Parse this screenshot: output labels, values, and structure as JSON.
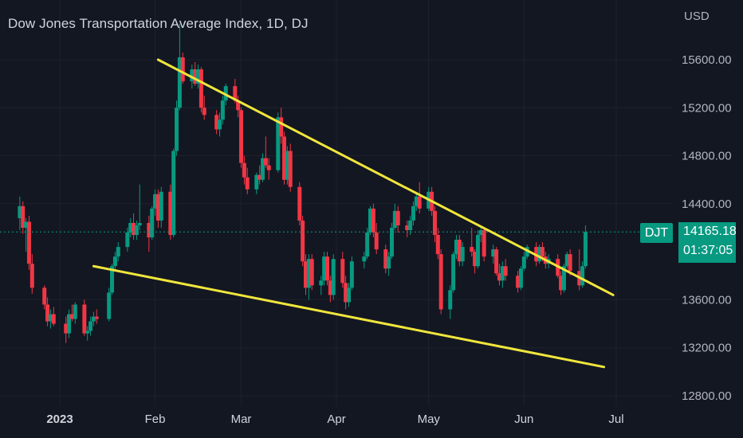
{
  "title": "Dow Jones Transportation Average Index, 1D, DJ",
  "currency": "USD",
  "symbol": "DJT",
  "last_price": "14165.18",
  "countdown": "01:37:05",
  "colors": {
    "background": "#131722",
    "up": "#089981",
    "down": "#f23645",
    "trendline": "#f0e63c",
    "price_line": "#089981"
  },
  "y_ticks": [
    "15600.00",
    "15200.00",
    "14800.00",
    "14400.00",
    "13600.00",
    "13200.00",
    "12800.00"
  ],
  "x_ticks": [
    "2023",
    "Feb",
    "Mar",
    "Apr",
    "May",
    "Jun",
    "Jul"
  ],
  "chart_data": {
    "type": "candlestick",
    "ylim": [
      12780,
      15950
    ],
    "y_ticks": [
      12800,
      13200,
      13600,
      14400,
      14800,
      15200,
      15600
    ],
    "x_tick_dates": [
      "2023-01-01",
      "2023-02-01",
      "2023-03-01",
      "2023-04-01",
      "2023-05-01",
      "2023-06-01",
      "2023-07-01"
    ],
    "last_price": 14165.18,
    "trendlines": [
      {
        "from": [
          "2023-02-02",
          15600
        ],
        "to": [
          "2023-06-30",
          13640
        ]
      },
      {
        "from": [
          "2023-01-12",
          13880
        ],
        "to": [
          "2023-06-27",
          13040
        ]
      }
    ],
    "candles": [
      [
        "2022-12-19",
        14280,
        14460,
        14180,
        14380
      ],
      [
        "2022-12-20",
        14380,
        14420,
        14150,
        14200
      ],
      [
        "2022-12-21",
        14200,
        14280,
        14000,
        14250
      ],
      [
        "2022-12-22",
        14250,
        14300,
        13850,
        13900
      ],
      [
        "2022-12-23",
        13900,
        13980,
        13650,
        13700
      ],
      [
        "2022-12-27",
        13700,
        13720,
        13520,
        13560
      ],
      [
        "2022-12-28",
        13560,
        13620,
        13380,
        13420
      ],
      [
        "2022-12-29",
        13420,
        13520,
        13360,
        13480
      ],
      [
        "2022-12-30",
        13480,
        13540,
        13380,
        13400
      ],
      [
        "2023-01-03",
        13400,
        13460,
        13240,
        13320
      ],
      [
        "2023-01-04",
        13320,
        13520,
        13280,
        13480
      ],
      [
        "2023-01-05",
        13480,
        13560,
        13420,
        13440
      ],
      [
        "2023-01-06",
        13440,
        13580,
        13400,
        13560
      ],
      [
        "2023-01-09",
        13560,
        13600,
        13300,
        13320
      ],
      [
        "2023-01-10",
        13320,
        13380,
        13260,
        13340
      ],
      [
        "2023-01-11",
        13340,
        13460,
        13300,
        13420
      ],
      [
        "2023-01-12",
        13420,
        13500,
        13380,
        13460
      ],
      [
        "2023-01-13",
        13460,
        13520,
        13400,
        13440
      ],
      [
        "2023-01-17",
        13440,
        13700,
        13420,
        13660
      ],
      [
        "2023-01-18",
        13660,
        13900,
        13640,
        13880
      ],
      [
        "2023-01-19",
        13880,
        14000,
        13840,
        13960
      ],
      [
        "2023-01-20",
        13960,
        14080,
        13920,
        14040
      ],
      [
        "2023-01-23",
        14040,
        14200,
        14000,
        14160
      ],
      [
        "2023-01-24",
        14160,
        14280,
        14120,
        14240
      ],
      [
        "2023-01-25",
        14240,
        14320,
        14100,
        14140
      ],
      [
        "2023-01-26",
        14140,
        14260,
        14100,
        14220
      ],
      [
        "2023-01-27",
        14220,
        14560,
        14180,
        14240
      ],
      [
        "2023-01-30",
        14240,
        14300,
        14000,
        14120
      ],
      [
        "2023-01-31",
        14120,
        14380,
        14100,
        14360
      ],
      [
        "2023-02-01",
        14360,
        14520,
        14300,
        14480
      ],
      [
        "2023-02-02",
        14480,
        14520,
        14200,
        14260
      ],
      [
        "2023-02-03",
        14260,
        14540,
        14200,
        14500
      ],
      [
        "2023-02-06",
        14500,
        14560,
        14100,
        14140
      ],
      [
        "2023-02-07",
        14140,
        14860,
        14120,
        14840
      ],
      [
        "2023-02-08",
        14840,
        15260,
        14800,
        15200
      ],
      [
        "2023-02-09",
        15200,
        15900,
        15180,
        15620
      ],
      [
        "2023-02-10",
        15620,
        15660,
        15400,
        15420
      ],
      [
        "2023-02-13",
        15420,
        15560,
        15360,
        15520
      ],
      [
        "2023-02-14",
        15520,
        15580,
        15380,
        15400
      ],
      [
        "2023-02-15",
        15400,
        15560,
        15360,
        15520
      ],
      [
        "2023-02-16",
        15520,
        15540,
        15160,
        15200
      ],
      [
        "2023-02-17",
        15200,
        15300,
        15100,
        15140
      ],
      [
        "2023-02-21",
        15140,
        15180,
        14980,
        15020
      ],
      [
        "2023-02-22",
        15020,
        15160,
        14960,
        15100
      ],
      [
        "2023-02-23",
        15100,
        15300,
        15060,
        15260
      ],
      [
        "2023-02-24",
        15260,
        15400,
        15220,
        15380
      ],
      [
        "2023-02-27",
        15380,
        15440,
        15240,
        15260
      ],
      [
        "2023-02-28",
        15260,
        15300,
        15120,
        15180
      ],
      [
        "2023-03-01",
        15180,
        15200,
        14700,
        14740
      ],
      [
        "2023-03-02",
        14740,
        14800,
        14560,
        14620
      ],
      [
        "2023-03-03",
        14620,
        14700,
        14480,
        14520
      ],
      [
        "2023-03-06",
        14520,
        14660,
        14480,
        14640
      ],
      [
        "2023-03-07",
        14640,
        14720,
        14560,
        14600
      ],
      [
        "2023-03-08",
        14600,
        14820,
        14580,
        14780
      ],
      [
        "2023-03-09",
        14780,
        14960,
        14700,
        14720
      ],
      [
        "2023-03-10",
        14720,
        14780,
        14600,
        14680
      ],
      [
        "2023-03-13",
        14680,
        15160,
        14660,
        15120
      ],
      [
        "2023-03-14",
        15120,
        15200,
        14900,
        14960
      ],
      [
        "2023-03-15",
        14960,
        15000,
        14560,
        14600
      ],
      [
        "2023-03-16",
        14600,
        14880,
        14560,
        14840
      ],
      [
        "2023-03-17",
        14840,
        14900,
        14500,
        14540
      ],
      [
        "2023-03-20",
        14540,
        14580,
        14220,
        14260
      ],
      [
        "2023-03-21",
        14260,
        14300,
        13880,
        13920
      ],
      [
        "2023-03-22",
        13920,
        13980,
        13640,
        13700
      ],
      [
        "2023-03-23",
        13700,
        13980,
        13600,
        13940
      ],
      [
        "2023-03-24",
        13940,
        13980,
        13680,
        13720
      ],
      [
        "2023-03-27",
        13720,
        13800,
        13640,
        13760
      ],
      [
        "2023-03-28",
        13760,
        14000,
        13720,
        13960
      ],
      [
        "2023-03-29",
        13960,
        14000,
        13720,
        13760
      ],
      [
        "2023-03-30",
        13760,
        13800,
        13580,
        13640
      ],
      [
        "2023-03-31",
        13640,
        13980,
        13600,
        13940
      ],
      [
        "2023-04-03",
        13940,
        14000,
        13700,
        13740
      ],
      [
        "2023-04-04",
        13740,
        13800,
        13520,
        13580
      ],
      [
        "2023-04-05",
        13580,
        13740,
        13540,
        13700
      ],
      [
        "2023-04-06",
        13700,
        13960,
        13680,
        13920
      ],
      [
        "2023-04-10",
        13920,
        14000,
        13860,
        13960
      ],
      [
        "2023-04-11",
        13960,
        14200,
        13940,
        14160
      ],
      [
        "2023-04-12",
        14160,
        14380,
        14140,
        14360
      ],
      [
        "2023-04-13",
        14360,
        14400,
        14120,
        14160
      ],
      [
        "2023-04-14",
        14160,
        14240,
        13980,
        14020
      ],
      [
        "2023-04-17",
        14020,
        14060,
        13820,
        13860
      ],
      [
        "2023-04-18",
        13860,
        14000,
        13800,
        13960
      ],
      [
        "2023-04-19",
        13960,
        14240,
        13940,
        14200
      ],
      [
        "2023-04-20",
        14200,
        14400,
        14180,
        14340
      ],
      [
        "2023-04-21",
        14340,
        14380,
        14160,
        14220
      ],
      [
        "2023-04-24",
        14220,
        14260,
        14120,
        14180
      ],
      [
        "2023-04-25",
        14180,
        14300,
        14140,
        14260
      ],
      [
        "2023-04-26",
        14260,
        14420,
        14220,
        14380
      ],
      [
        "2023-04-27",
        14380,
        14500,
        14340,
        14460
      ],
      [
        "2023-04-28",
        14460,
        14580,
        14320,
        14360
      ],
      [
        "2023-05-01",
        14360,
        14540,
        14340,
        14500
      ],
      [
        "2023-05-02",
        14500,
        14540,
        14300,
        14340
      ],
      [
        "2023-05-03",
        14340,
        14380,
        14080,
        14140
      ],
      [
        "2023-05-04",
        14140,
        14200,
        13940,
        13980
      ],
      [
        "2023-05-05",
        13980,
        14020,
        13480,
        13520
      ],
      [
        "2023-05-08",
        13520,
        13720,
        13440,
        13680
      ],
      [
        "2023-05-09",
        13680,
        14000,
        13660,
        13980
      ],
      [
        "2023-05-10",
        13980,
        14140,
        13940,
        14100
      ],
      [
        "2023-05-11",
        14100,
        14140,
        13880,
        13920
      ],
      [
        "2023-05-12",
        13920,
        14080,
        13880,
        14040
      ],
      [
        "2023-05-15",
        14040,
        14200,
        13960,
        14000
      ],
      [
        "2023-05-16",
        14000,
        14020,
        13820,
        13880
      ],
      [
        "2023-05-17",
        13880,
        14180,
        13860,
        14140
      ],
      [
        "2023-05-18",
        14140,
        14220,
        14080,
        14180
      ],
      [
        "2023-05-19",
        14180,
        14200,
        13920,
        13960
      ],
      [
        "2023-05-22",
        13960,
        14060,
        13900,
        14020
      ],
      [
        "2023-05-23",
        14020,
        14040,
        13800,
        13820
      ],
      [
        "2023-05-24",
        13820,
        13900,
        13720,
        13760
      ],
      [
        "2023-05-25",
        13760,
        13920,
        13700,
        13880
      ],
      [
        "2023-05-26",
        13880,
        13940,
        13760,
        13800
      ],
      [
        "2023-05-30",
        13800,
        13840,
        13660,
        13700
      ],
      [
        "2023-05-31",
        13700,
        13880,
        13680,
        13860
      ],
      [
        "2023-06-01",
        13860,
        14000,
        13840,
        13960
      ],
      [
        "2023-06-02",
        13960,
        14060,
        13940,
        14040
      ],
      [
        "2023-06-05",
        14040,
        14080,
        13880,
        13920
      ],
      [
        "2023-06-06",
        13920,
        14060,
        13900,
        14040
      ],
      [
        "2023-06-07",
        14040,
        14080,
        13920,
        13960
      ],
      [
        "2023-06-08",
        13960,
        14000,
        13860,
        13900
      ],
      [
        "2023-06-09",
        13900,
        13980,
        13860,
        13940
      ],
      [
        "2023-06-12",
        13940,
        13980,
        13780,
        13800
      ],
      [
        "2023-06-13",
        13800,
        13840,
        13640,
        13680
      ],
      [
        "2023-06-14",
        13680,
        13900,
        13660,
        13880
      ],
      [
        "2023-06-15",
        13880,
        14000,
        13860,
        13980
      ],
      [
        "2023-06-16",
        13980,
        14020,
        13800,
        13840
      ],
      [
        "2023-06-19",
        13840,
        14020,
        13680,
        13720
      ],
      [
        "2023-06-20",
        13720,
        13920,
        13700,
        13880
      ],
      [
        "2023-06-21",
        13880,
        14220,
        13860,
        14165.18
      ]
    ]
  }
}
